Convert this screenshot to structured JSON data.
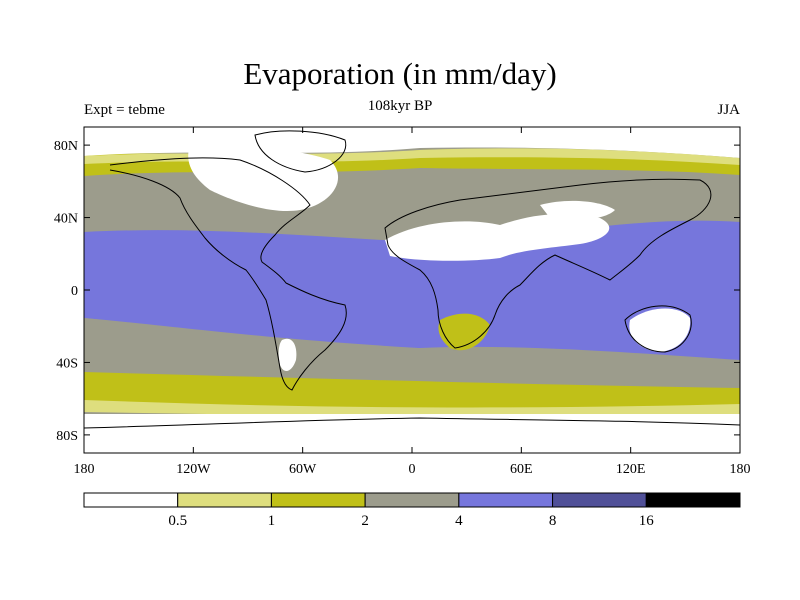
{
  "title": "Evaporation (in mm/day)",
  "subtitle": "108kyr BP",
  "left_label": "Expt = tebme",
  "right_label": "JJA",
  "map": {
    "lat_ticks": [
      "80N",
      "40N",
      "0",
      "40S",
      "80S"
    ],
    "lat_values": [
      80,
      40,
      0,
      -40,
      -80
    ],
    "lon_ticks": [
      "180",
      "120W",
      "60W",
      "0",
      "60E",
      "120E",
      "180"
    ],
    "lon_values": [
      -180,
      -120,
      -60,
      0,
      60,
      120,
      180
    ],
    "lat_range": [
      -90,
      90
    ],
    "lon_range": [
      -180,
      180
    ]
  },
  "legend": {
    "labels": [
      "0.5",
      "1",
      "2",
      "4",
      "8",
      "16"
    ],
    "colors": [
      "#ffffff",
      "#dede7e",
      "#c0c018",
      "#9c9c8c",
      "#7676dc",
      "#505098",
      "#000000"
    ]
  }
}
